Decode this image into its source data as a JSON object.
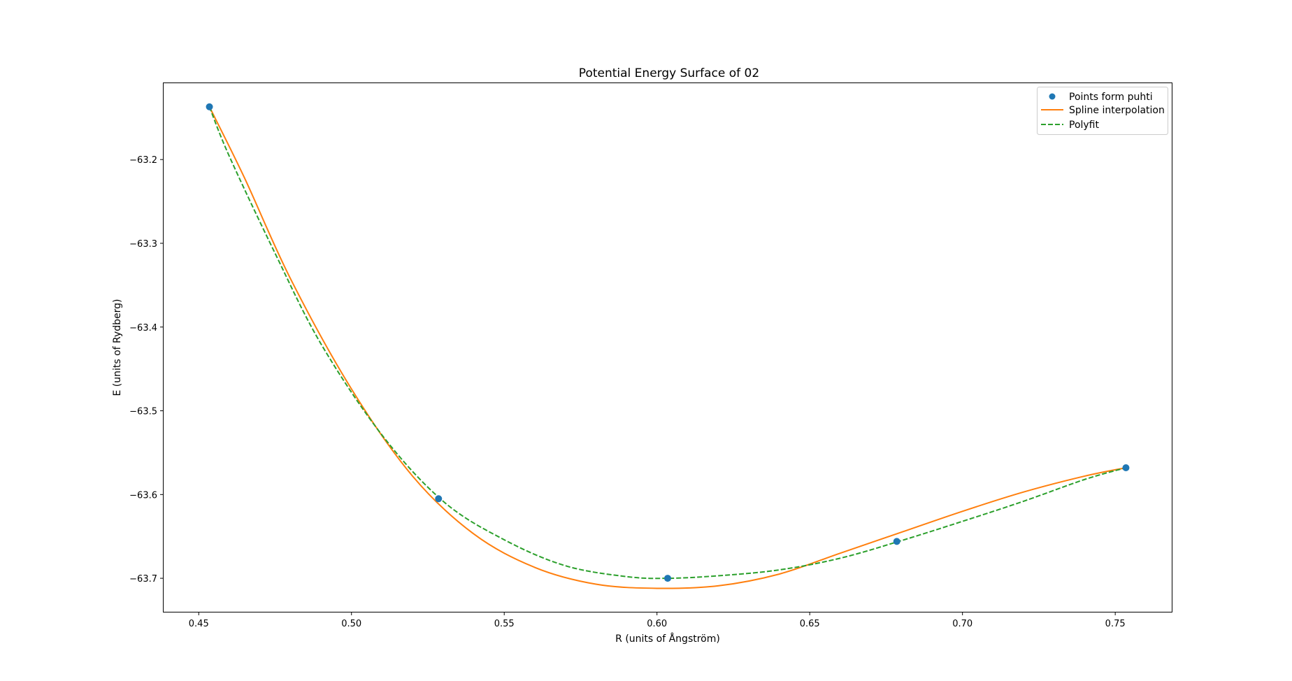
{
  "chart_data": {
    "type": "line",
    "title": "Potential Energy Surface of 02",
    "xlabel": "R (units of Ångström)",
    "ylabel": "E (units of Rydberg)",
    "xlim": [
      0.4385,
      0.7685
    ],
    "ylim": [
      -63.74,
      -63.108
    ],
    "xticks": [
      0.45,
      0.5,
      0.55,
      0.6,
      0.65,
      0.7,
      0.75
    ],
    "xtick_labels": [
      "0.45",
      "0.50",
      "0.55",
      "0.60",
      "0.65",
      "0.70",
      "0.75"
    ],
    "yticks": [
      -63.2,
      -63.3,
      -63.4,
      -63.5,
      -63.6,
      -63.7
    ],
    "ytick_labels": [
      "−63.2",
      "−63.3",
      "−63.4",
      "−63.5",
      "−63.6",
      "−63.7"
    ],
    "grid": false,
    "legend_position": "top-right",
    "series": [
      {
        "name": "Points form puhti",
        "kind": "scatter",
        "color": "#1f77b4",
        "x": [
          0.4535,
          0.5285,
          0.6035,
          0.6785,
          0.7535
        ],
        "y": [
          -63.137,
          -63.605,
          -63.7,
          -63.656,
          -63.568
        ]
      },
      {
        "name": "Spline interpolation",
        "kind": "line",
        "color": "#ff7f0e",
        "x": [
          0.4535,
          0.465,
          0.48,
          0.5,
          0.52,
          0.54,
          0.56,
          0.58,
          0.6,
          0.62,
          0.64,
          0.66,
          0.68,
          0.7,
          0.72,
          0.74,
          0.7535
        ],
        "y": [
          -63.137,
          -63.222,
          -63.342,
          -63.474,
          -63.578,
          -63.647,
          -63.687,
          -63.707,
          -63.712,
          -63.709,
          -63.695,
          -63.67,
          -63.645,
          -63.62,
          -63.597,
          -63.578,
          -63.568
        ]
      },
      {
        "name": "Polyfit",
        "kind": "dashed",
        "color": "#2ca02c",
        "x": [
          0.4535,
          0.46,
          0.475,
          0.49,
          0.51,
          0.53,
          0.55,
          0.57,
          0.59,
          0.6035,
          0.62,
          0.64,
          0.66,
          0.68,
          0.7,
          0.72,
          0.74,
          0.7535
        ],
        "y": [
          -63.137,
          -63.196,
          -63.312,
          -63.42,
          -63.529,
          -63.608,
          -63.654,
          -63.685,
          -63.698,
          -63.7,
          -63.697,
          -63.69,
          -63.676,
          -63.655,
          -63.632,
          -63.608,
          -63.582,
          -63.568
        ]
      }
    ]
  }
}
